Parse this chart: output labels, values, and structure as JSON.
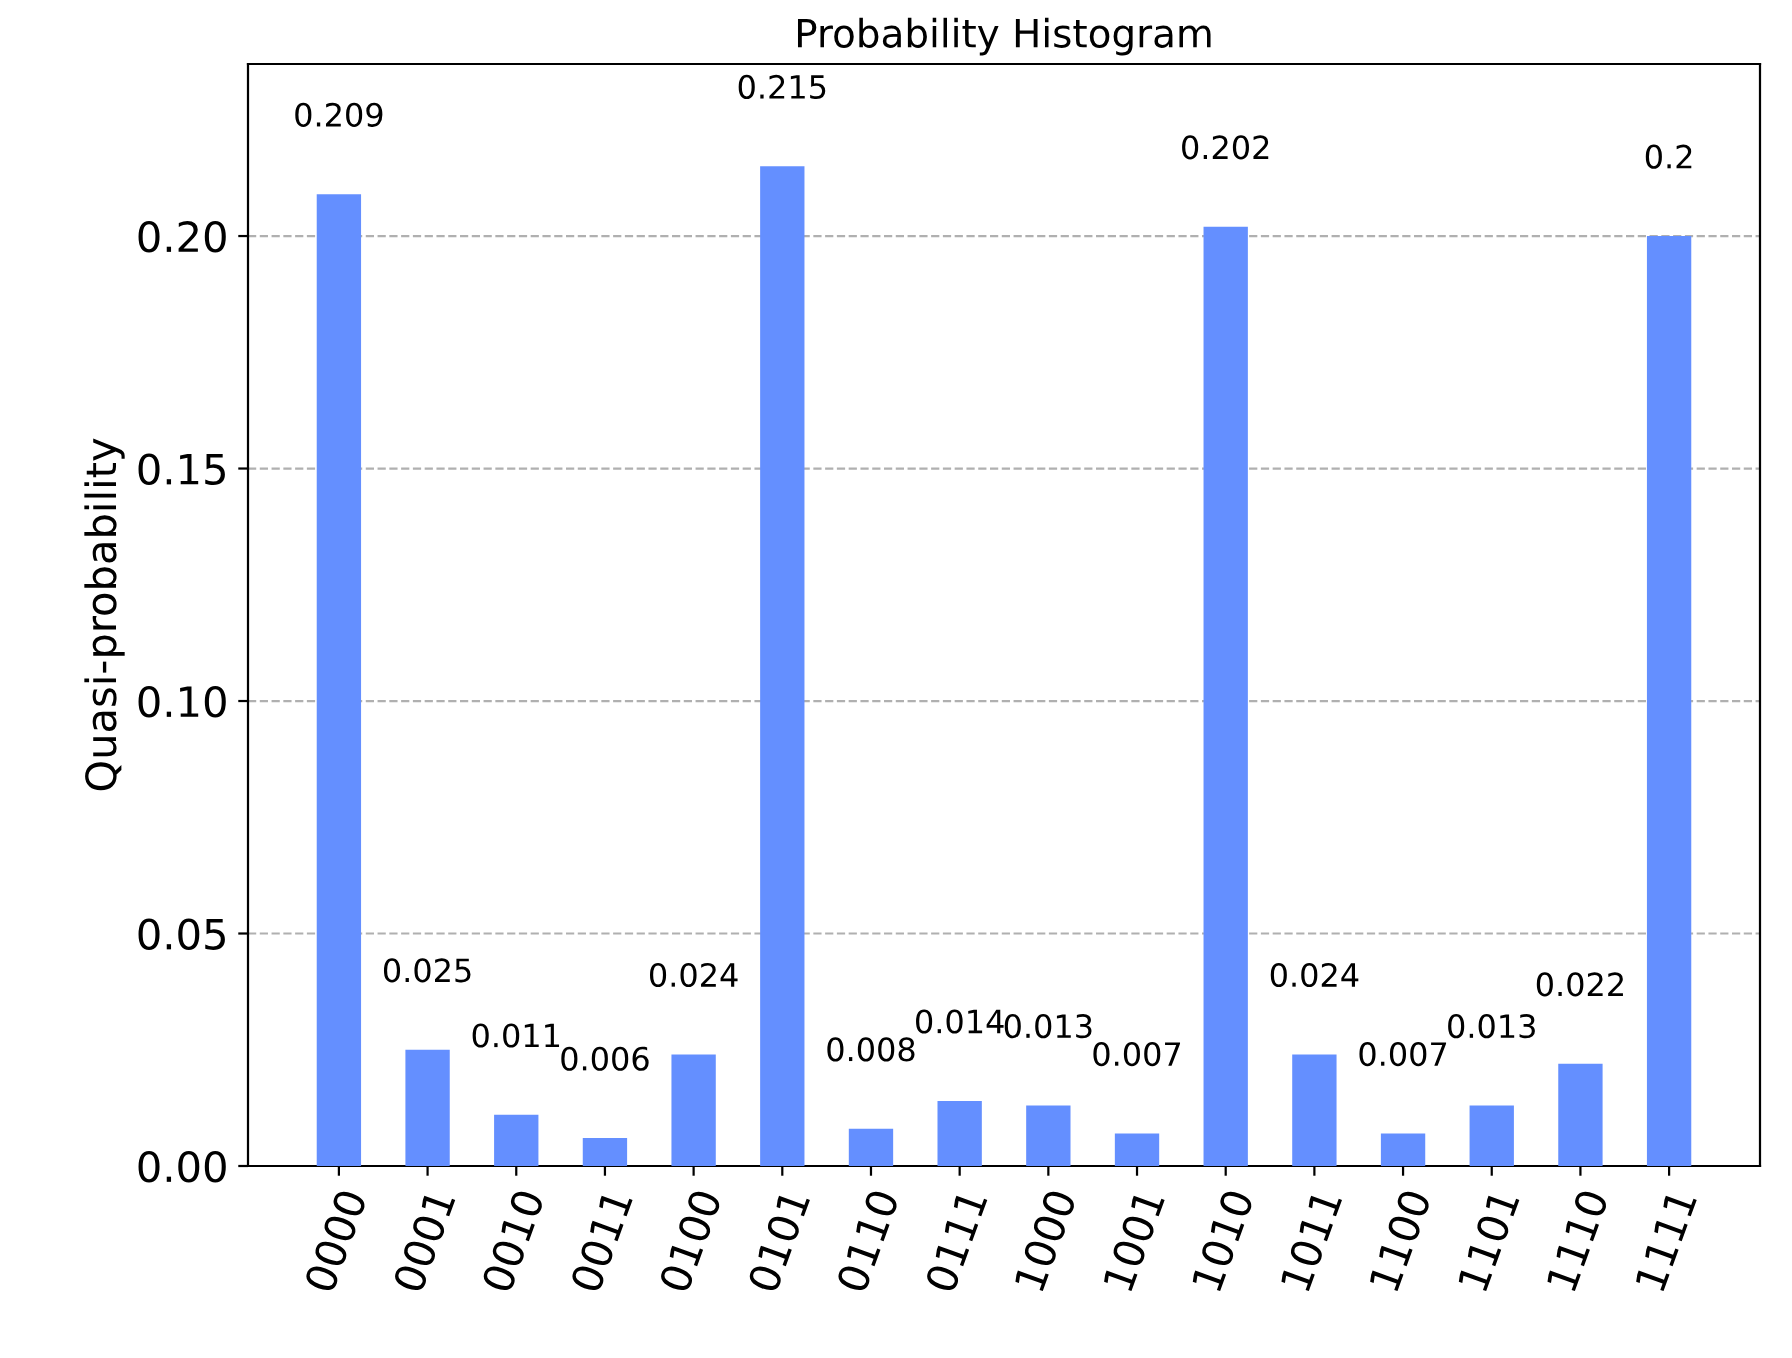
{
  "chart_data": {
    "type": "bar",
    "title": "Probability Histogram",
    "ylabel": "Quasi-probability",
    "categories": [
      "0000",
      "0001",
      "0010",
      "0011",
      "0100",
      "0101",
      "0110",
      "0111",
      "1000",
      "1001",
      "1010",
      "1011",
      "1100",
      "1101",
      "1110",
      "1111"
    ],
    "values": [
      0.209,
      0.025,
      0.011,
      0.006,
      0.024,
      0.215,
      0.008,
      0.014,
      0.013,
      0.007,
      0.202,
      0.024,
      0.007,
      0.013,
      0.022,
      0.2
    ],
    "color": "#648fff",
    "ylim": [
      0,
      0.237
    ],
    "yticks": [
      {
        "value": 0,
        "label": "0.00"
      },
      {
        "value": 0.05,
        "label": "0.05"
      },
      {
        "value": 0.1,
        "label": "0.10"
      },
      {
        "value": 0.15,
        "label": "0.15"
      },
      {
        "value": 0.2,
        "label": "0.20"
      }
    ],
    "grid": "y",
    "data_labels": true
  }
}
